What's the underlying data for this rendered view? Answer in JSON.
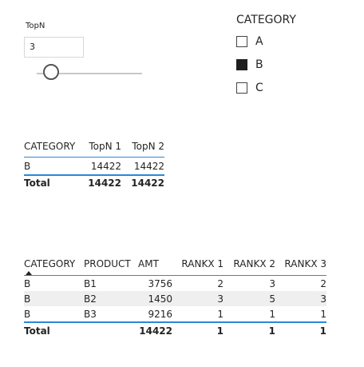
{
  "topn_slicer": {
    "title": "TopN",
    "value": "3"
  },
  "category_slicer": {
    "title": "CATEGORY",
    "items": [
      {
        "label": "A",
        "checked": false
      },
      {
        "label": "B",
        "checked": true
      },
      {
        "label": "C",
        "checked": false
      }
    ]
  },
  "table1": {
    "headers": [
      "CATEGORY",
      "TopN 1",
      "TopN 2"
    ],
    "rows": [
      [
        "B",
        "14422",
        "14422"
      ]
    ],
    "total": [
      "Total",
      "14422",
      "14422"
    ]
  },
  "table2": {
    "headers": [
      "CATEGORY",
      "PRODUCT",
      "AMT",
      "RANKX 1",
      "RANKX 2",
      "RANKX 3"
    ],
    "rows": [
      [
        "B",
        "B1",
        "3756",
        "2",
        "3",
        "2"
      ],
      [
        "B",
        "B2",
        "1450",
        "3",
        "5",
        "3"
      ],
      [
        "B",
        "B3",
        "9216",
        "1",
        "1",
        "1"
      ]
    ],
    "total": [
      "Total",
      "",
      "14422",
      "1",
      "1",
      "1"
    ]
  }
}
